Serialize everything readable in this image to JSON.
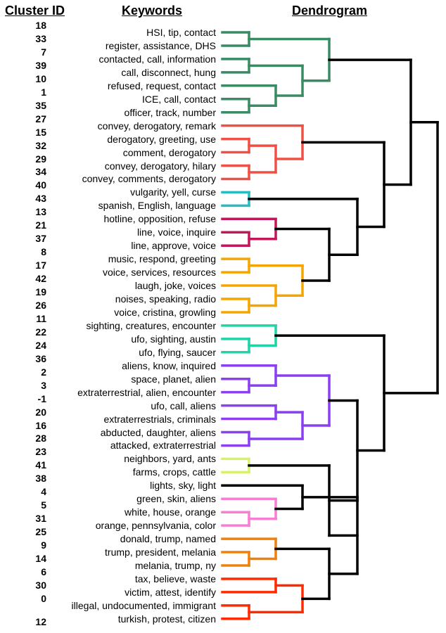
{
  "headers": {
    "cluster_id": "Cluster ID",
    "keywords": "Keywords",
    "dendrogram": "Dendrogram"
  },
  "rows": [
    {
      "id": "18",
      "keywords": "HSI, tip, contact"
    },
    {
      "id": "33",
      "keywords": "register, assistance, DHS"
    },
    {
      "id": "7",
      "keywords": "contacted, call, information"
    },
    {
      "id": "39",
      "keywords": "call, disconnect, hung"
    },
    {
      "id": "10",
      "keywords": "refused, request, contact"
    },
    {
      "id": "1",
      "keywords": "ICE, call, contact"
    },
    {
      "id": "35",
      "keywords": "officer, track, number"
    },
    {
      "id": "27",
      "keywords": "convey, derogatory, remark"
    },
    {
      "id": "15",
      "keywords": "derogatory, greeting, use"
    },
    {
      "id": "32",
      "keywords": "comment, derogatory"
    },
    {
      "id": "29",
      "keywords": "convey, derogatory, hilary"
    },
    {
      "id": "34",
      "keywords": "convey, comments, derogatory"
    },
    {
      "id": "40",
      "keywords": "vulgarity, yell, curse"
    },
    {
      "id": "43",
      "keywords": "spanish, English, language"
    },
    {
      "id": "13",
      "keywords": "hotline, opposition, refuse"
    },
    {
      "id": "21",
      "keywords": "line, voice, inquire"
    },
    {
      "id": "37",
      "keywords": "line, approve, voice"
    },
    {
      "id": "8",
      "keywords": "music, respond, greeting"
    },
    {
      "id": "17",
      "keywords": "voice, services, resources"
    },
    {
      "id": "42",
      "keywords": "laugh, joke, voices"
    },
    {
      "id": "19",
      "keywords": "noises, speaking, radio"
    },
    {
      "id": "26",
      "keywords": "voice, cristina, growling"
    },
    {
      "id": "11",
      "keywords": "sighting, creatures, encounter"
    },
    {
      "id": "22",
      "keywords": "ufo, sighting, austin"
    },
    {
      "id": "24",
      "keywords": "ufo, flying, saucer"
    },
    {
      "id": "36",
      "keywords": "aliens, know, inquired"
    },
    {
      "id": "2",
      "keywords": "space, planet, alien"
    },
    {
      "id": "3",
      "keywords": "extraterrestrial, alien, encounter"
    },
    {
      "id": "-1",
      "keywords": "ufo, call, aliens"
    },
    {
      "id": "20",
      "keywords": "extraterrestrials, criminals"
    },
    {
      "id": "16",
      "keywords": "abducted, daughter, aliens"
    },
    {
      "id": "28",
      "keywords": "attacked, extraterrestrial"
    },
    {
      "id": "23",
      "keywords": "neighbors, yard, ants"
    },
    {
      "id": "41",
      "keywords": "farms, crops, cattle"
    },
    {
      "id": "38",
      "keywords": "lights, sky, light"
    },
    {
      "id": "4",
      "keywords": "green, skin, aliens"
    },
    {
      "id": "5",
      "keywords": "white, house, orange"
    },
    {
      "id": "31",
      "keywords": "orange, pennsylvania, color"
    },
    {
      "id": "25",
      "keywords": "donald, trump, named"
    },
    {
      "id": "9",
      "keywords": "trump, president, melania"
    },
    {
      "id": "14",
      "keywords": "melania, trump, ny"
    },
    {
      "id": "6",
      "keywords": "tax, believe, waste"
    },
    {
      "id": "30",
      "keywords": "victim, attest, identify"
    },
    {
      "id": "0",
      "keywords": "illegal, undocumented, immigrant"
    },
    {
      "id": "12",
      "keywords": "turkish, protest, citizen"
    }
  ],
  "colors": {
    "green": "#3a8a63",
    "red": "#ef5045",
    "teal": "#26bcc0",
    "magenta": "#c2185b",
    "amber": "#f5a500",
    "aqua": "#1fd3a6",
    "purple": "#8a3ff0",
    "lime": "#d6f26a",
    "pink": "#f77ed0",
    "orange": "#f0800c",
    "crimson": "#ff2a00",
    "link": "#000000"
  }
}
